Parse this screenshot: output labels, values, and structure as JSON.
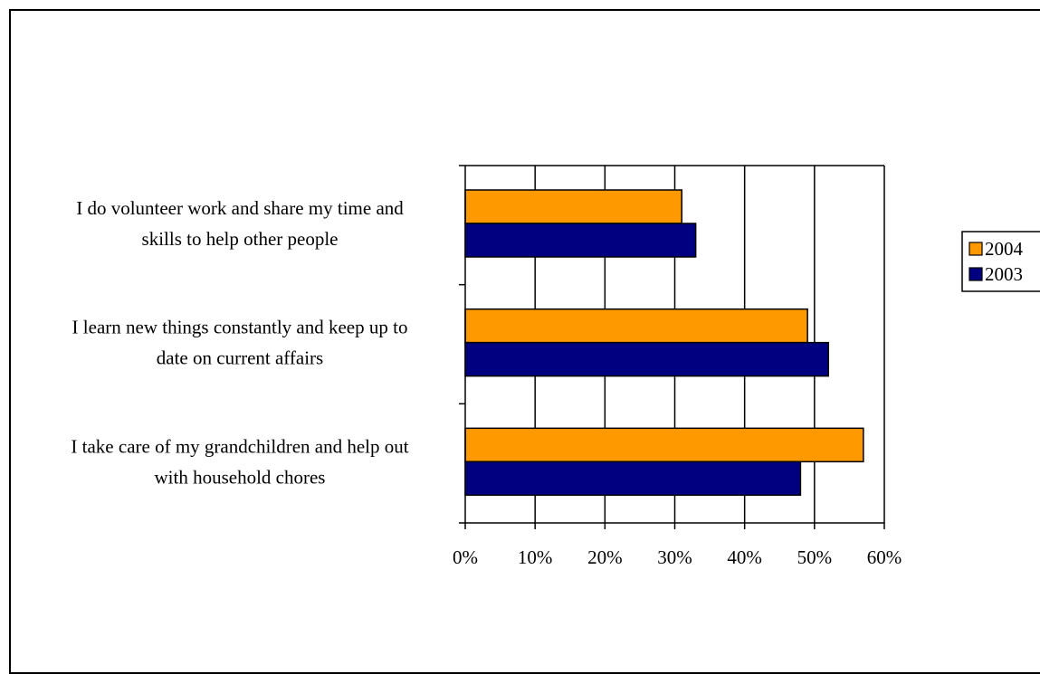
{
  "chart_data": {
    "type": "bar",
    "orientation": "horizontal",
    "categories": [
      [
        "I do volunteer work and share my time and",
        "skills to help other people"
      ],
      [
        "I learn new things constantly and keep up to",
        "date on current affairs"
      ],
      [
        "I take care of my grandchildren and help out",
        "with household chores"
      ]
    ],
    "series": [
      {
        "name": "2004",
        "color": "#FF9900",
        "values": [
          0.31,
          0.49,
          0.57
        ]
      },
      {
        "name": "2003",
        "color": "#000080",
        "values": [
          0.33,
          0.52,
          0.48
        ]
      }
    ],
    "xlim": [
      0,
      0.6
    ],
    "xticks": [
      0,
      0.1,
      0.2,
      0.3,
      0.4,
      0.5,
      0.6
    ],
    "xtick_labels": [
      "0%",
      "10%",
      "20%",
      "30%",
      "40%",
      "50%",
      "60%"
    ],
    "grid": "vertical",
    "legend": {
      "position": "right",
      "entries": [
        "2004",
        "2003"
      ]
    }
  }
}
